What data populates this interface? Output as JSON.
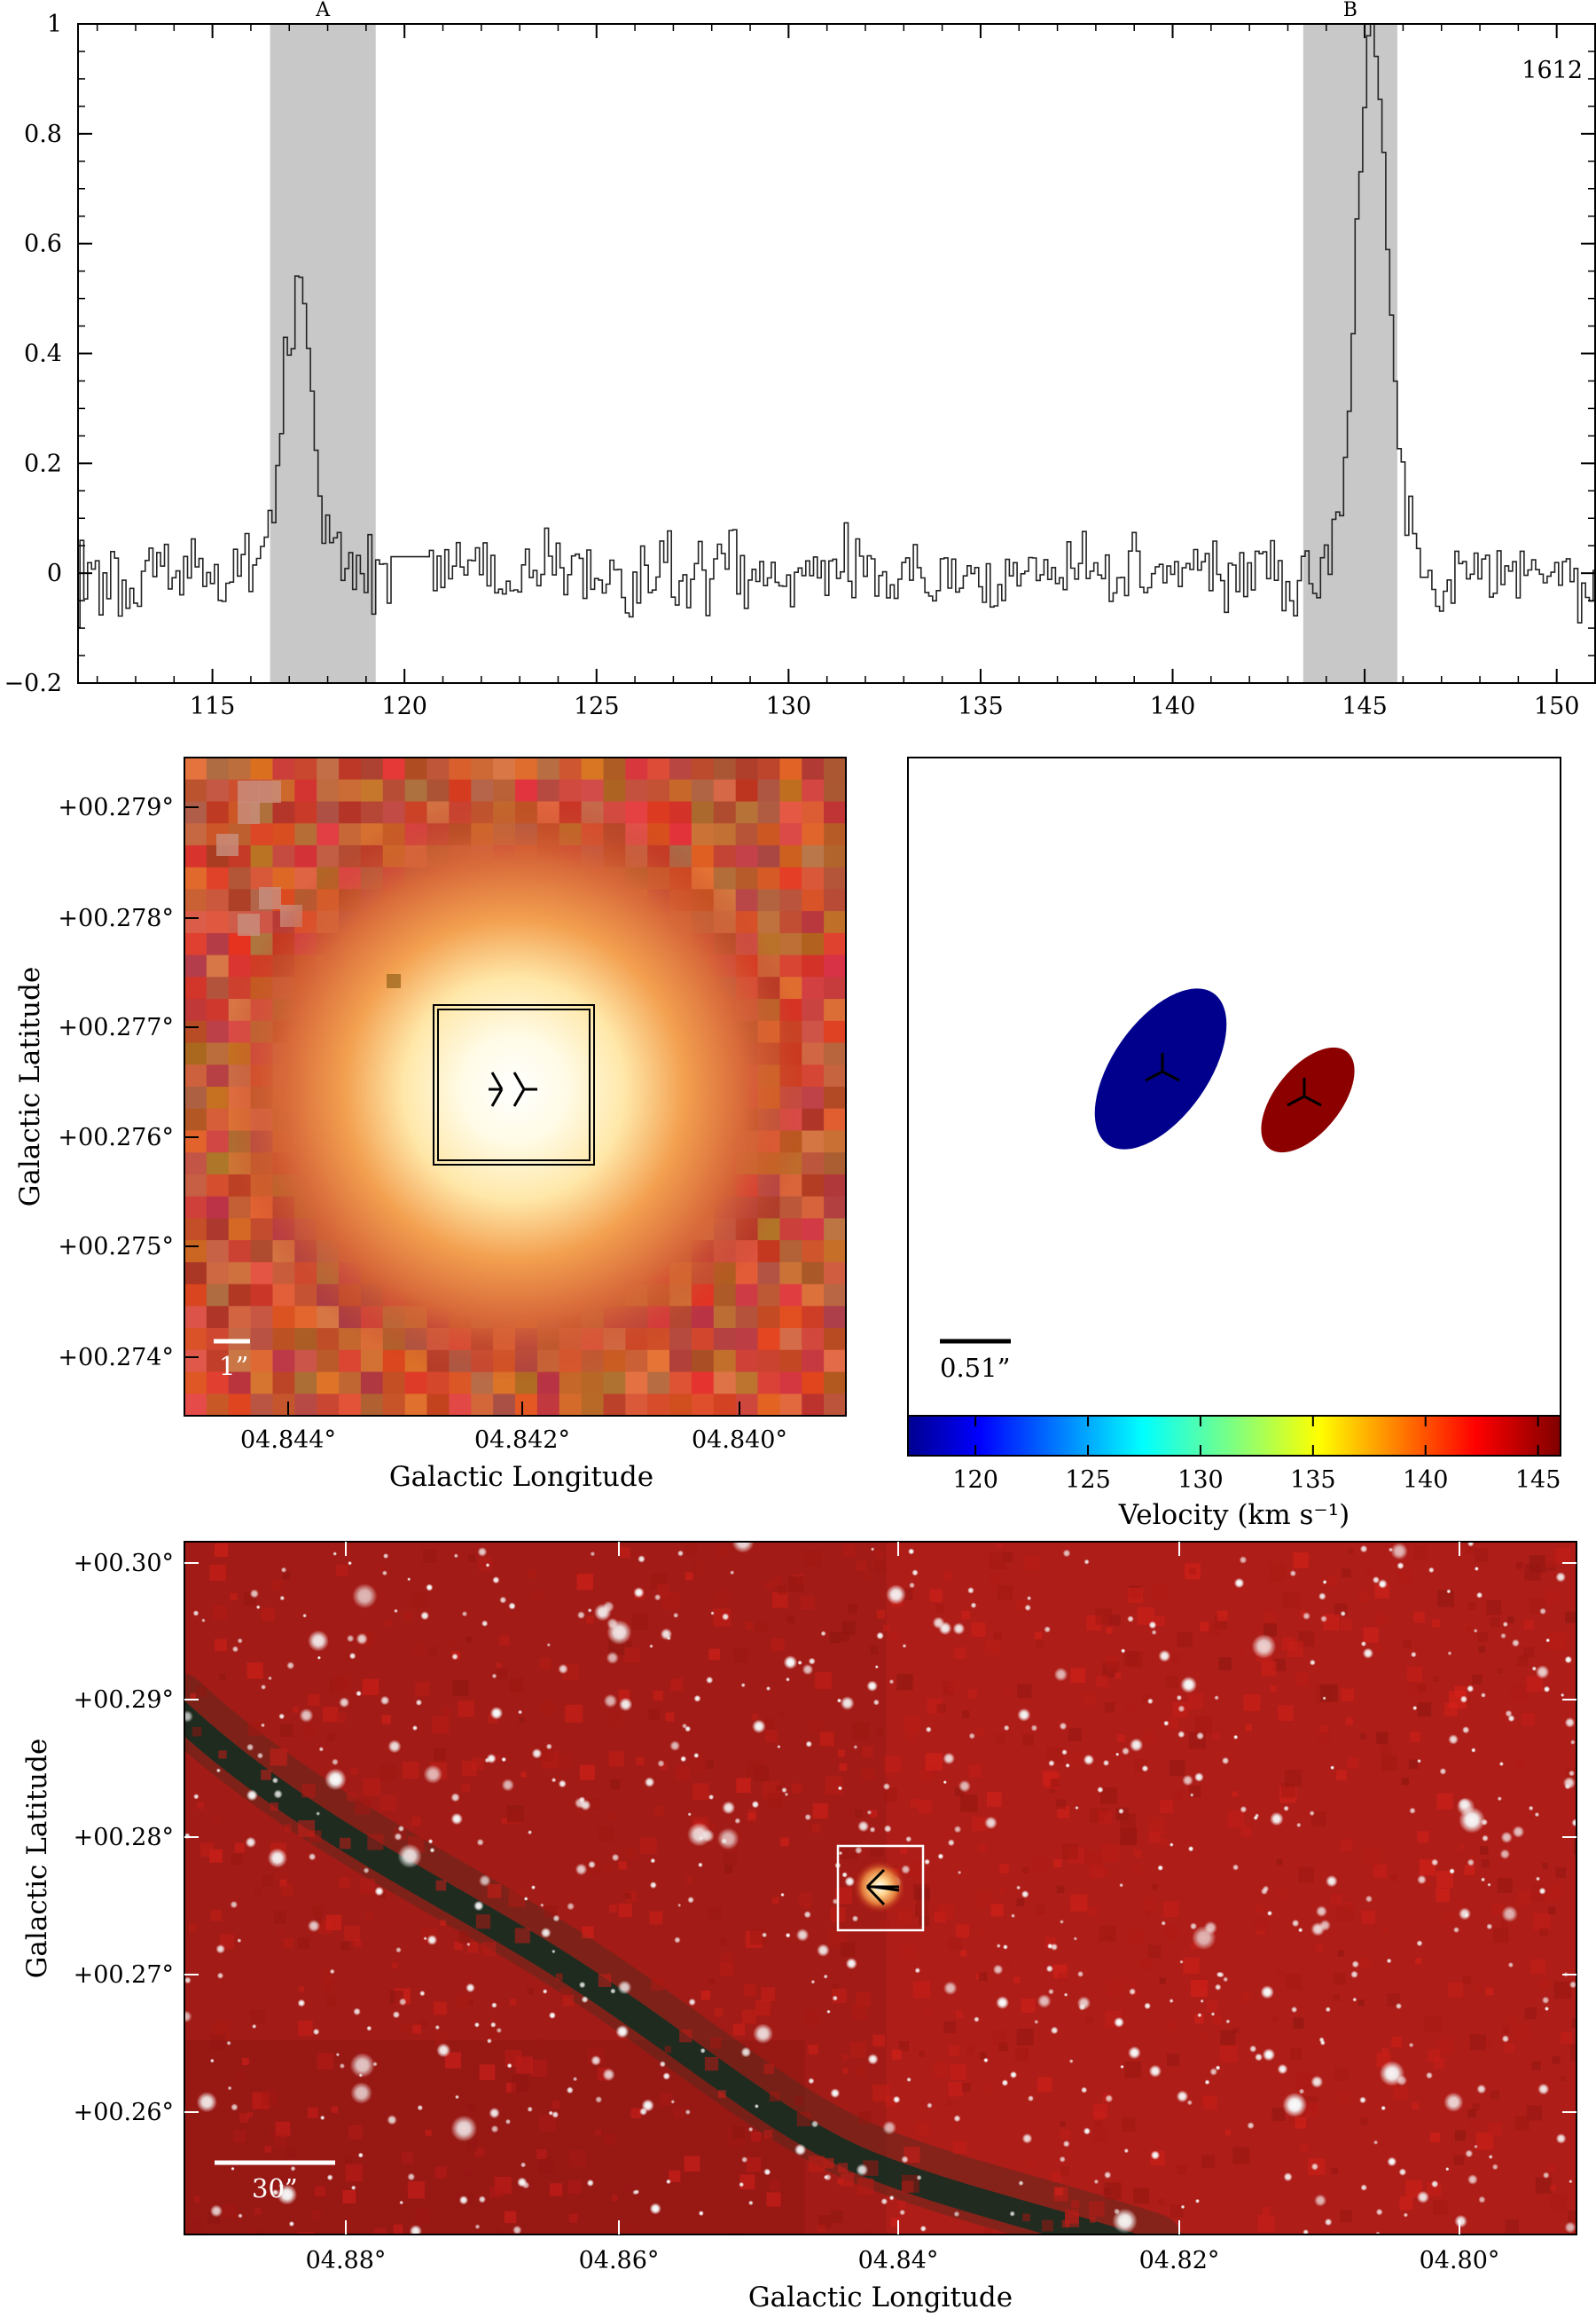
{
  "chart_data": [
    {
      "type": "line",
      "panel": "spectrum",
      "annotation": "1612",
      "xlim": [
        111.5,
        151.0
      ],
      "ylim": [
        -0.2,
        1.0
      ],
      "x_ticks": [
        "115",
        "120",
        "125",
        "130",
        "135",
        "140",
        "145",
        "150"
      ],
      "y_ticks": [
        "−0.2",
        "0",
        "0.2",
        "0.4",
        "0.6",
        "0.8",
        "1"
      ],
      "bands": [
        {
          "label": "A",
          "x_start": 116.5,
          "x_end": 119.25,
          "color": "#c8c8c8"
        },
        {
          "label": "B",
          "x_start": 143.4,
          "x_end": 145.85,
          "color": "#c8c8c8"
        }
      ],
      "peaks": [
        {
          "label": "A",
          "x": 117.2,
          "y": 0.49
        },
        {
          "label": "B",
          "x": 145.2,
          "y": 0.97
        }
      ],
      "noise_level": 0.07
    },
    {
      "type": "heatmap",
      "panel": "zoom-image",
      "xlabel": "Galactic Longitude",
      "ylabel": "Galactic Latitude",
      "x_ticks": [
        "04.844°",
        "04.842°",
        "04.840°"
      ],
      "y_ticks": [
        "+00.279°",
        "+00.278°",
        "+00.277°",
        "+00.276°",
        "+00.275°",
        "+00.274°"
      ],
      "scale_label": "1”"
    },
    {
      "type": "scatter",
      "panel": "maser-spots",
      "scale_label": "0.51”",
      "colorbar_label": "Velocity (km s⁻¹)",
      "colorbar_ticks": [
        "120",
        "125",
        "130",
        "135",
        "140",
        "145"
      ],
      "colorbar_range": [
        117,
        146
      ],
      "spots": [
        {
          "velocity": 117.2,
          "color": "#00008c"
        },
        {
          "velocity": 145.2,
          "color": "#8c0000"
        }
      ]
    },
    {
      "type": "heatmap",
      "panel": "wide-field",
      "xlabel": "Galactic Longitude",
      "ylabel": "Galactic Latitude",
      "x_ticks": [
        "04.88°",
        "04.86°",
        "04.84°",
        "04.82°",
        "04.80°"
      ],
      "y_ticks": [
        "+00.30°",
        "+00.29°",
        "+00.28°",
        "+00.27°",
        "+00.26°"
      ],
      "scale_label": "30”"
    }
  ]
}
